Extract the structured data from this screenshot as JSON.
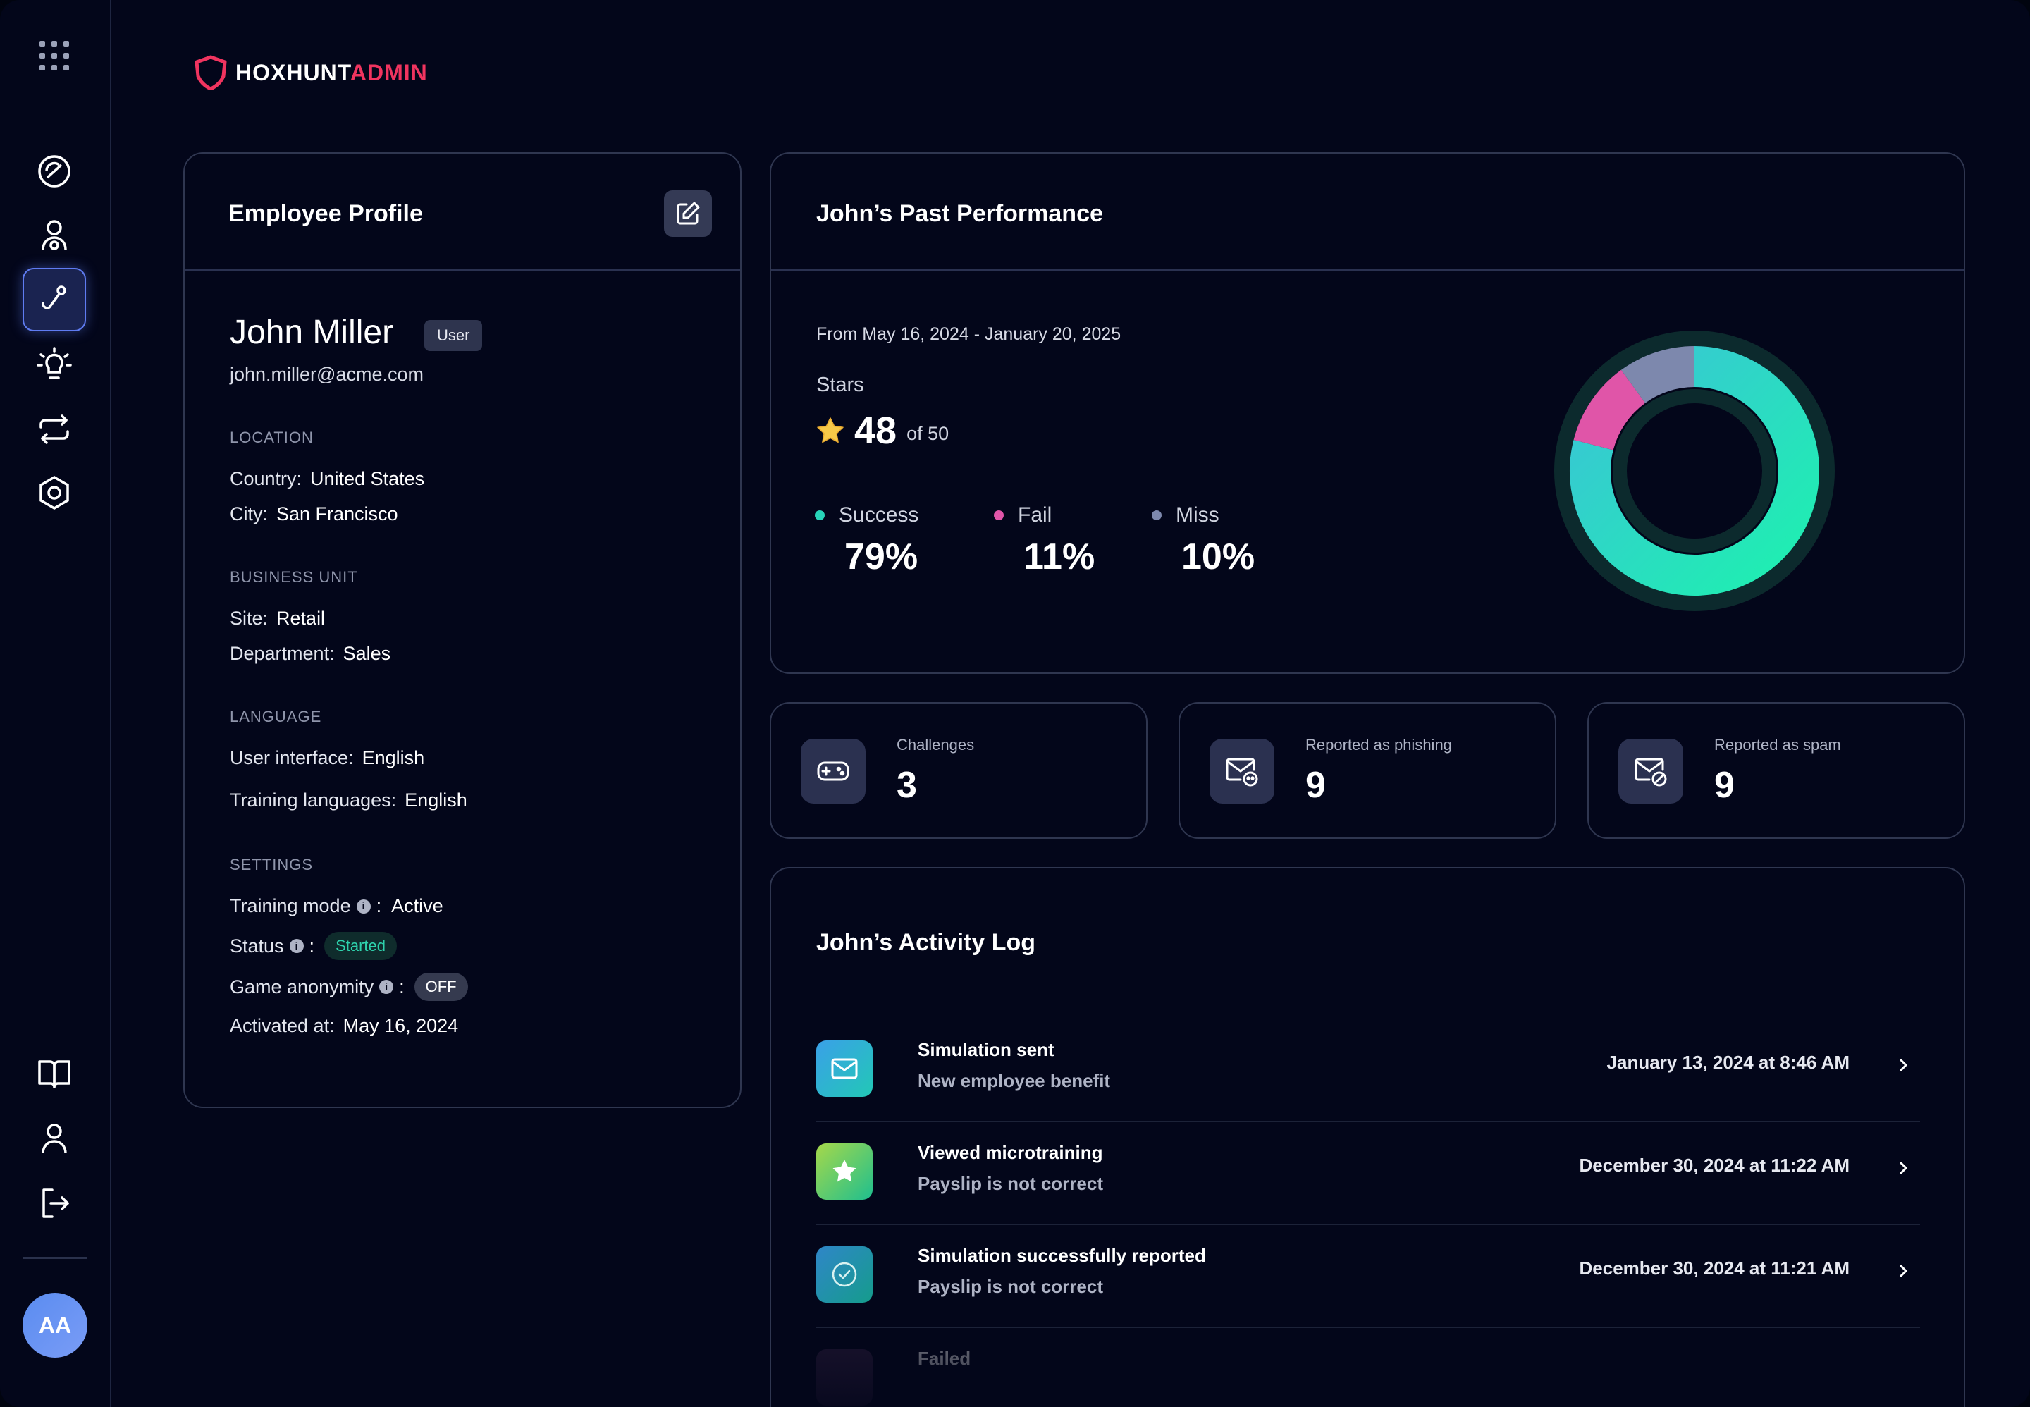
{
  "app": {
    "logo_primary": "HOXHUNT",
    "logo_secondary": "ADMIN",
    "avatar_initials": "AA"
  },
  "sidebar": {
    "top_icons": [
      "apps-grid-icon",
      "dashboard-gauge-icon",
      "user-settings-icon",
      "phishing-hook-icon",
      "lightbulb-icon",
      "sync-arrows-icon",
      "settings-hex-icon"
    ],
    "bottom_icons": [
      "book-icon",
      "user-icon",
      "logout-icon"
    ],
    "active": "phishing-hook-icon"
  },
  "profile": {
    "title": "Employee Profile",
    "name": "John Miller",
    "role": "User",
    "email": "john.miller@acme.com",
    "location_label": "LOCATION",
    "country_key": "Country:",
    "country": "United States",
    "city_key": "City:",
    "city": "San Francisco",
    "business_label": "BUSINESS UNIT",
    "site_key": "Site:",
    "site": "Retail",
    "department_key": "Department:",
    "department": "Sales",
    "language_label": "LANGUAGE",
    "ui_key": "User interface:",
    "ui_lang": "English",
    "training_lang_key": "Training languages:",
    "training_lang": "English",
    "settings_label": "SETTINGS",
    "training_mode_key": "Training mode",
    "training_mode": "Active",
    "status_key": "Status",
    "status": "Started",
    "anonymity_key": "Game anonymity",
    "anonymity": "OFF",
    "activated_key": "Activated at:",
    "activated": "May 16, 2024",
    "colon": ":"
  },
  "performance": {
    "title": "John’s Past Performance",
    "date_range": "From May 16, 2024 - January 20, 2025",
    "stars_label": "Stars",
    "stars": "48",
    "stars_of": "of 50",
    "stats": [
      {
        "label": "Success",
        "value": "79%",
        "color": "#27d3b8"
      },
      {
        "label": "Fail",
        "value": "11%",
        "color": "#e055a8"
      },
      {
        "label": "Miss",
        "value": "10%",
        "color": "#7d88ad"
      }
    ],
    "donut_fractions": {
      "success": 0.79,
      "fail": 0.11,
      "miss": 0.1
    }
  },
  "summary": [
    {
      "label": "Challenges",
      "value": "3",
      "icon": "gamepad-icon"
    },
    {
      "label": "Reported as phishing",
      "value": "9",
      "icon": "mail-phish-icon"
    },
    {
      "label": "Reported as spam",
      "value": "9",
      "icon": "mail-blocked-icon"
    }
  ],
  "activity": {
    "title": "John’s Activity Log",
    "items": [
      {
        "title": "Simulation sent",
        "subtitle": "New employee benefit",
        "date": "January 13, 2024 at 8:46 AM",
        "icon": "mail-icon"
      },
      {
        "title": "Viewed microtraining",
        "subtitle": "Payslip is not correct",
        "date": "December 30, 2024 at 11:22 AM",
        "icon": "star-icon"
      },
      {
        "title": "Simulation successfully reported",
        "subtitle": "Payslip is not correct",
        "date": "December 30, 2024 at 11:21 AM",
        "icon": "check-circle-icon"
      },
      {
        "title": "Failed",
        "subtitle": "",
        "date": "",
        "icon": "failed-icon"
      }
    ]
  },
  "colors": {
    "accent": "#f0345f",
    "success": "#27d3b8",
    "fail": "#e055a8",
    "miss": "#7d88ad",
    "background": "#03061a"
  }
}
